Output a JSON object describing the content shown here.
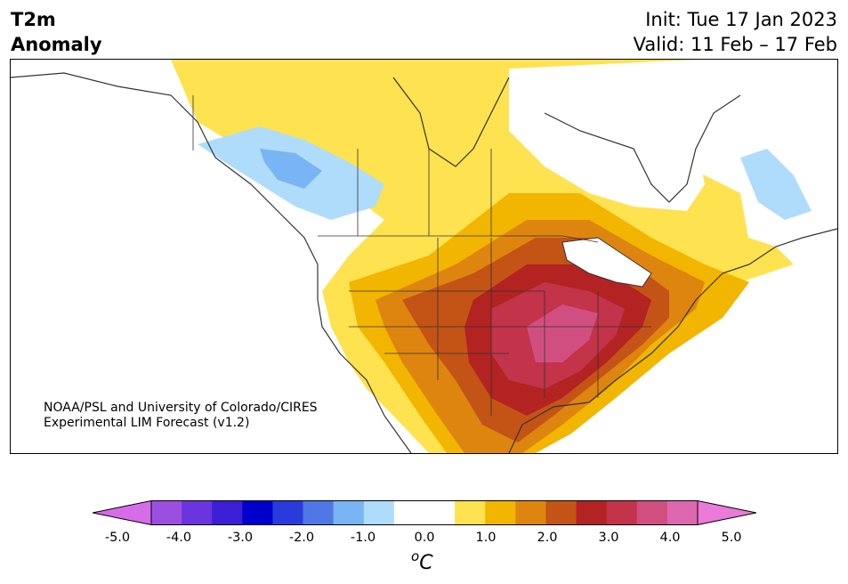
{
  "header": {
    "title_line1": "T2m",
    "title_line2": "Anomaly",
    "init": "Init: Tue 17 Jan 2023",
    "valid": "Valid: 11 Feb – 17 Feb"
  },
  "credit": {
    "line1": "NOAA/PSL and University of Colorado/CIRES",
    "line2": "Experimental LIM Forecast (v1.2)"
  },
  "colorbar": {
    "colors": [
      "#d66ce8",
      "#9b4fe0",
      "#6a35dc",
      "#3a1fd4",
      "#0000cc",
      "#2a3bdc",
      "#4f78e6",
      "#79b4f4",
      "#b0dcfb",
      "#ffffff",
      "#ffffff",
      "#fee24f",
      "#f2b500",
      "#de8510",
      "#c35416",
      "#b22322",
      "#c3334a",
      "#d14f80",
      "#dd68b0",
      "#eb7ad8"
    ],
    "tick_labels": [
      "-5.0",
      "-4.0",
      "-3.0",
      "-2.0",
      "-1.0",
      "0.0",
      "1.0",
      "2.0",
      "3.0",
      "4.0",
      "5.0"
    ],
    "unit_sup": "o",
    "unit": "C"
  },
  "map": {
    "region": "North America",
    "variable": "2m temperature anomaly (°C)",
    "features": [
      {
        "name": "cold-anomaly-northwest-canada",
        "level": -1.0
      },
      {
        "name": "cold-anomaly-core-northwest",
        "level": -1.5
      },
      {
        "name": "cold-anomaly-labrador",
        "level": -1.0
      },
      {
        "name": "warm-anomaly-central-us-max",
        "level": 4.0
      }
    ]
  }
}
